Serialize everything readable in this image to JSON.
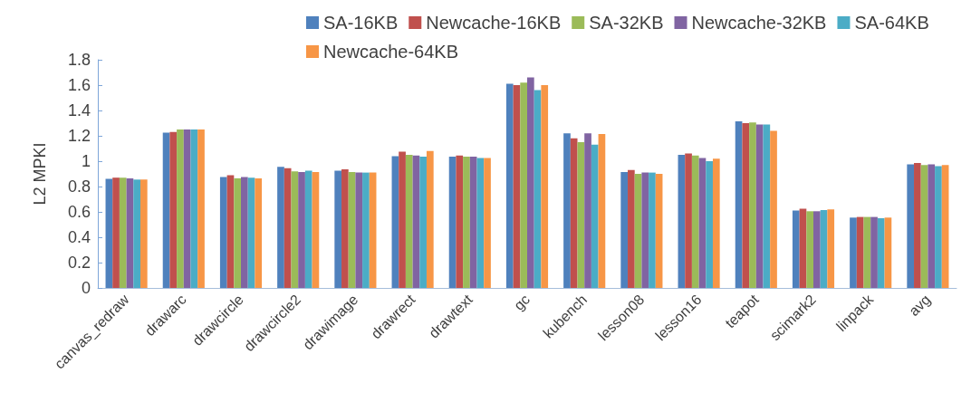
{
  "chart_data": {
    "type": "bar",
    "ylabel": "L2 MPKI",
    "categories": [
      "canvas_redraw",
      "drawarc",
      "drawcircle",
      "drawcircle2",
      "drawimage",
      "drawrect",
      "drawtext",
      "gc",
      "kubench",
      "lesson08",
      "lesson16",
      "teapot",
      "scimark2",
      "linpack",
      "avg"
    ],
    "series": [
      {
        "name": "SA-16KB",
        "color": "#4f81bd",
        "values": [
          0.86,
          1.225,
          0.875,
          0.955,
          0.925,
          1.04,
          1.035,
          1.61,
          1.22,
          0.915,
          1.05,
          1.315,
          0.61,
          0.555,
          0.975
        ]
      },
      {
        "name": "Newcache-16KB",
        "color": "#c0504d",
        "values": [
          0.87,
          1.23,
          0.89,
          0.945,
          0.935,
          1.075,
          1.045,
          1.6,
          1.18,
          0.93,
          1.06,
          1.3,
          0.625,
          0.56,
          0.985
        ]
      },
      {
        "name": "SA-32KB",
        "color": "#9bbb59",
        "values": [
          0.87,
          1.25,
          0.865,
          0.92,
          0.915,
          1.05,
          1.035,
          1.62,
          1.15,
          0.9,
          1.045,
          1.305,
          0.605,
          0.56,
          0.97
        ]
      },
      {
        "name": "Newcache-32KB",
        "color": "#8064a2",
        "values": [
          0.865,
          1.25,
          0.875,
          0.915,
          0.91,
          1.045,
          1.035,
          1.66,
          1.22,
          0.91,
          1.025,
          1.29,
          0.605,
          0.56,
          0.975
        ]
      },
      {
        "name": "SA-64KB",
        "color": "#4bacc6",
        "values": [
          0.855,
          1.25,
          0.87,
          0.925,
          0.91,
          1.035,
          1.025,
          1.56,
          1.13,
          0.91,
          1.0,
          1.29,
          0.615,
          0.55,
          0.96
        ]
      },
      {
        "name": "Newcache-64KB",
        "color": "#f79646",
        "values": [
          0.855,
          1.25,
          0.865,
          0.915,
          0.91,
          1.08,
          1.025,
          1.6,
          1.215,
          0.9,
          1.02,
          1.24,
          0.62,
          0.555,
          0.97
        ]
      }
    ],
    "ylim": [
      0,
      1.8
    ],
    "yticks": [
      0,
      0.2,
      0.4,
      0.6,
      0.8,
      1,
      1.2,
      1.4,
      1.6,
      1.8
    ],
    "grid": false,
    "legend": "top"
  }
}
